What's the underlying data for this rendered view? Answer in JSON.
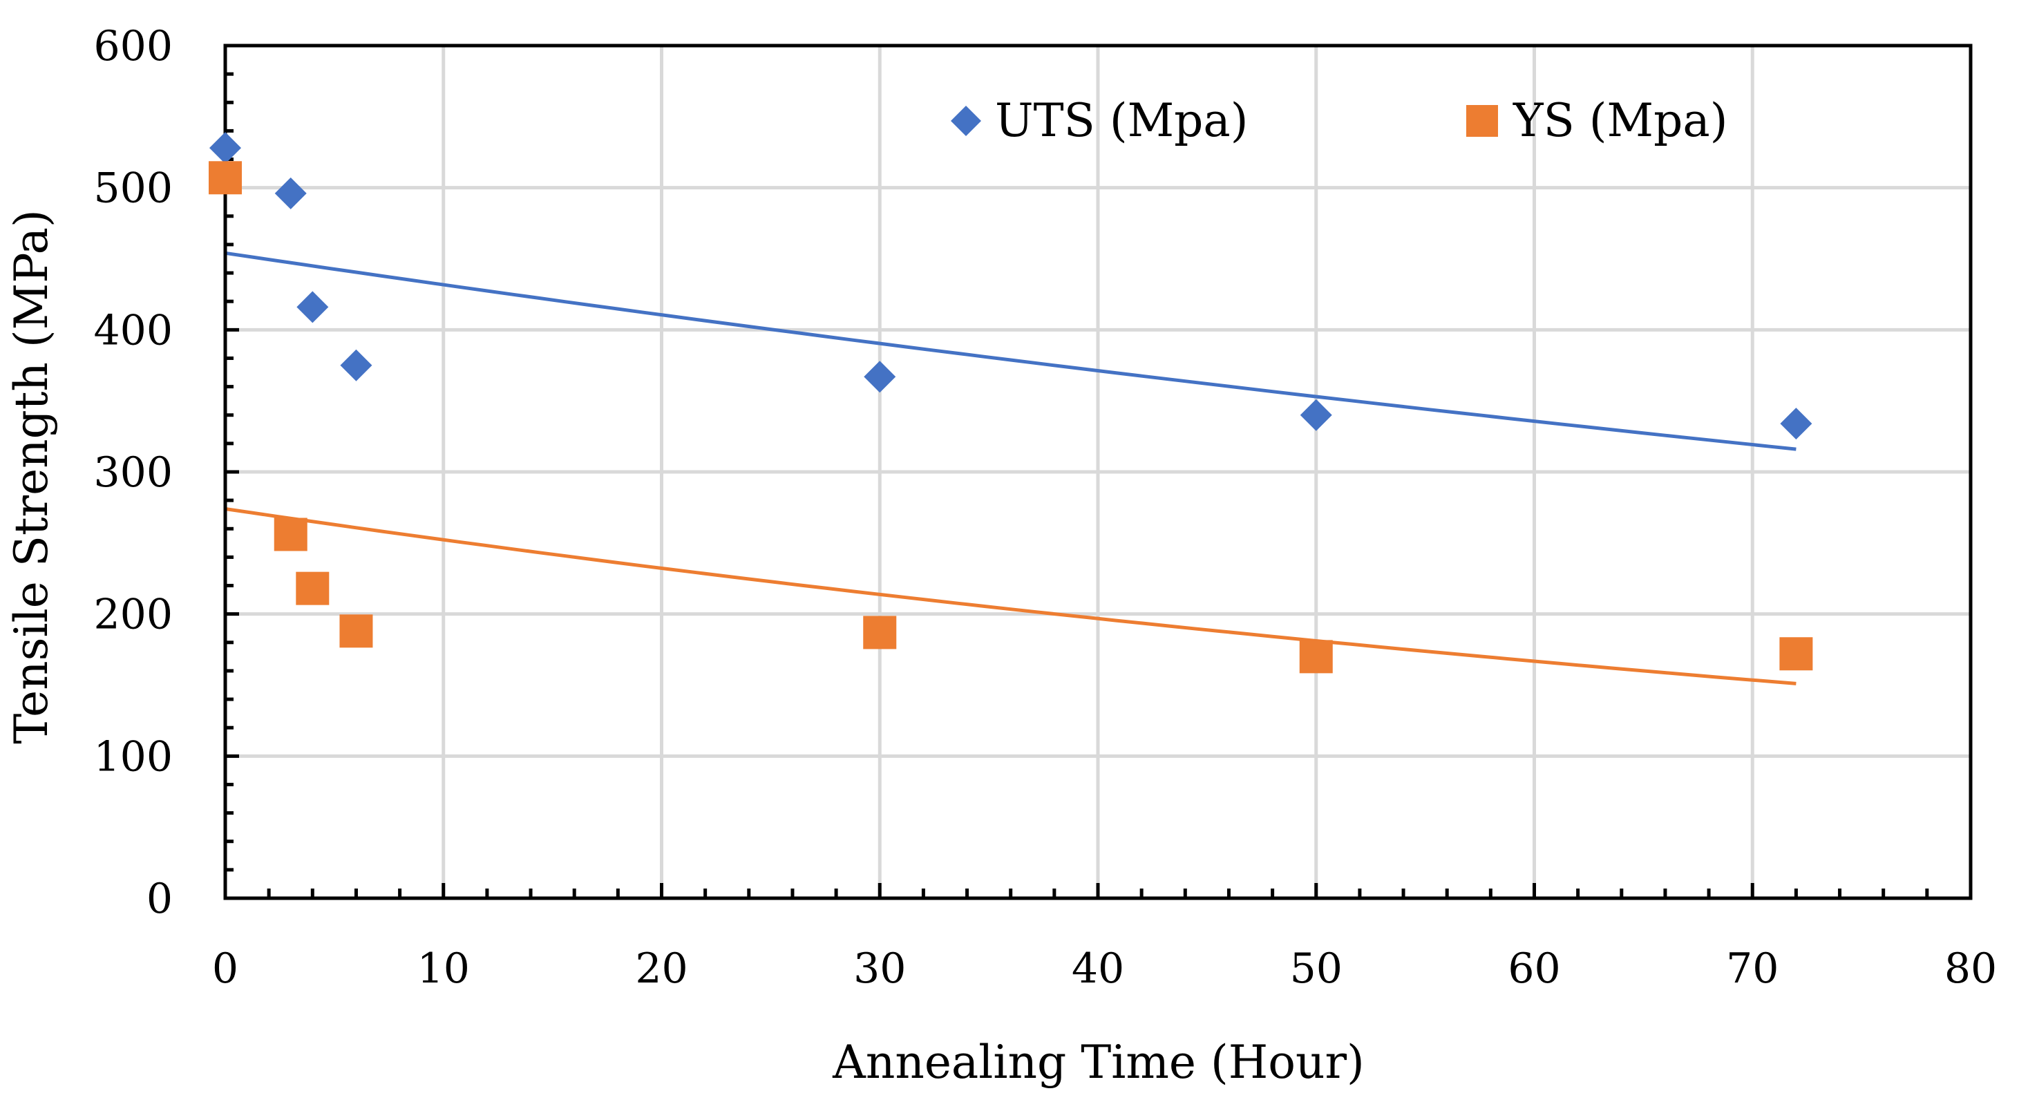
{
  "chart_data": {
    "type": "scatter",
    "xlabel": "Annealing Time (Hour)",
    "ylabel": "Tensile Strength (MPa)",
    "xlim": [
      0,
      80
    ],
    "ylim": [
      0,
      600
    ],
    "xticks": [
      0,
      10,
      20,
      30,
      40,
      50,
      60,
      70,
      80
    ],
    "yticks": [
      0,
      100,
      200,
      300,
      400,
      500,
      600
    ],
    "xtick_labels": [
      "0",
      "10",
      "20",
      "30",
      "40",
      "50",
      "60",
      "70",
      "80"
    ],
    "ytick_labels": [
      "0",
      "100",
      "200",
      "300",
      "400",
      "500",
      "600"
    ],
    "grid": true,
    "legend_position": "top-right",
    "series": [
      {
        "name": "UTS (Mpa)",
        "marker": "diamond",
        "color": "#4472C4",
        "x": [
          0,
          3,
          4,
          6,
          30,
          50,
          72
        ],
        "y": [
          528,
          496,
          416,
          375,
          367,
          340,
          334
        ],
        "trendline": {
          "type": "exponential",
          "x": [
            0,
            72
          ],
          "y": [
            454,
            316
          ]
        }
      },
      {
        "name": "YS (Mpa)",
        "marker": "square",
        "color": "#ED7D31",
        "x": [
          0,
          3,
          4,
          6,
          30,
          50,
          72
        ],
        "y": [
          507,
          256,
          218,
          188,
          187,
          170,
          172
        ],
        "trendline": {
          "type": "exponential",
          "x": [
            0,
            72
          ],
          "y": [
            274,
            151
          ]
        }
      }
    ]
  }
}
